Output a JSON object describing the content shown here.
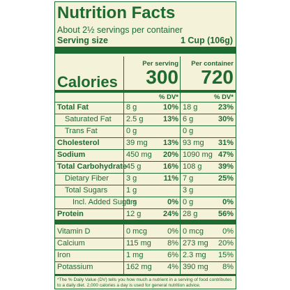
{
  "label": {
    "title": "Nutrition Facts",
    "servings": "About 2½ servings per container",
    "serving_size": {
      "label": "Serving size",
      "value": "1 Cup (106g)"
    },
    "columns": [
      "Per serving",
      "Per container"
    ],
    "calories": {
      "label": "Calories",
      "values": [
        "300",
        "720"
      ]
    },
    "dv_header": [
      "% DV*",
      "% DV*"
    ],
    "rows": [
      {
        "name": "Total Fat",
        "bold": true,
        "indent": 0,
        "cells": [
          "8 g",
          "10%",
          "18 g",
          "23%"
        ]
      },
      {
        "name": "Saturated Fat",
        "bold": false,
        "indent": 1,
        "cells": [
          "2.5 g",
          "13%",
          "6 g",
          "30%"
        ]
      },
      {
        "name": "Trans Fat",
        "bold": false,
        "indent": 1,
        "cells": [
          "0 g",
          "",
          "0 g",
          ""
        ]
      },
      {
        "name": "Cholesterol",
        "bold": true,
        "indent": 0,
        "cells": [
          "39 mg",
          "13%",
          "93 mg",
          "31%"
        ]
      },
      {
        "name": "Sodium",
        "bold": true,
        "indent": 0,
        "cells": [
          "450 mg",
          "20%",
          "1090 mg",
          "47%"
        ]
      },
      {
        "name": "Total Carbohydrate",
        "bold": true,
        "indent": 0,
        "cells": [
          "45 g",
          "16%",
          "108 g",
          "39%"
        ]
      },
      {
        "name": "Dietary Fiber",
        "bold": false,
        "indent": 1,
        "cells": [
          "3 g",
          "11%",
          "7 g",
          "25%"
        ]
      },
      {
        "name": "Total Sugars",
        "bold": false,
        "indent": 1,
        "cells": [
          "1 g",
          "",
          "3 g",
          ""
        ]
      },
      {
        "name": "Incl. Added Sugars",
        "bold": false,
        "indent": 2,
        "cells": [
          "0 g",
          "0%",
          "0 g",
          "0%"
        ]
      },
      {
        "name": "Protein",
        "bold": true,
        "indent": 0,
        "cells": [
          "12 g",
          "24%",
          "28 g",
          "56%"
        ]
      }
    ],
    "vitamins": [
      {
        "name": "Vitamin D",
        "cells": [
          "0 mcg",
          "0%",
          "0 mcg",
          "0%"
        ]
      },
      {
        "name": "Calcium",
        "cells": [
          "115 mg",
          "8%",
          "273 mg",
          "20%"
        ]
      },
      {
        "name": "Iron",
        "cells": [
          "1 mg",
          "6%",
          "2.3 mg",
          "15%"
        ]
      },
      {
        "name": "Potassium",
        "cells": [
          "162 mg",
          "4%",
          "390 mg",
          "8%"
        ]
      }
    ],
    "footnote": "*The % Daily Value (DV) tells you how much a nutrient in a serving of food contributes to a daily diet. 2,000 calories a day is used for general nutrition advice."
  }
}
